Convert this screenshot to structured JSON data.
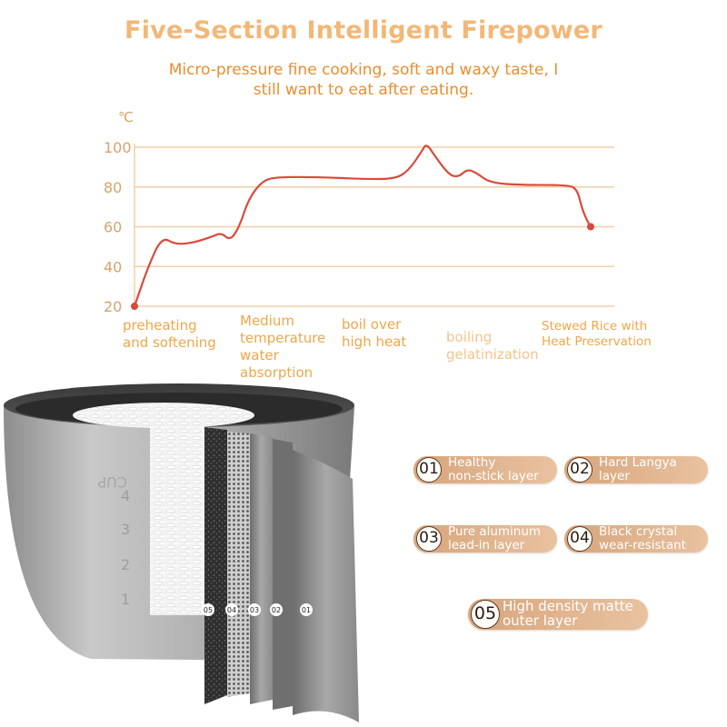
{
  "header": {
    "title": "Five-Section Intelligent Firepower",
    "subtitle": "Micro-pressure fine cooking, soft and waxy taste, I still want to eat after eating."
  },
  "chart_data": {
    "type": "line",
    "unit": "℃",
    "ylim": [
      20,
      100
    ],
    "yticks": [
      "100",
      "80",
      "60",
      "40",
      "20"
    ],
    "grid": true,
    "series": [
      {
        "color": "#d94a3a",
        "points": [
          [
            0,
            20
          ],
          [
            3,
            40
          ],
          [
            6,
            55
          ],
          [
            9,
            51
          ],
          [
            13,
            52
          ],
          [
            17,
            55
          ],
          [
            19,
            57
          ],
          [
            21,
            53
          ],
          [
            23,
            60
          ],
          [
            25,
            74
          ],
          [
            28,
            83
          ],
          [
            31,
            85
          ],
          [
            40,
            85
          ],
          [
            50,
            84
          ],
          [
            57,
            84
          ],
          [
            60,
            88
          ],
          [
            63,
            98
          ],
          [
            64,
            102
          ],
          [
            66,
            95
          ],
          [
            69,
            86
          ],
          [
            71,
            85
          ],
          [
            73,
            89
          ],
          [
            75,
            87
          ],
          [
            78,
            82
          ],
          [
            85,
            81
          ],
          [
            95,
            81
          ],
          [
            97,
            79
          ],
          [
            98,
            70
          ],
          [
            99,
            64
          ],
          [
            100,
            60
          ]
        ]
      }
    ],
    "stages": [
      "preheating and softening",
      "Medium temperature water absorption",
      "boil over high heat",
      "boiling gelatinization",
      "Stewed Rice with Heat Preservation"
    ]
  },
  "stage_text": {
    "s1_line1": "preheating",
    "s1_line2": "and softening",
    "s2_line1": "Medium",
    "s2_line2": "temperature",
    "s2_line3": "water",
    "s2_line4": "absorption",
    "s3_line1": "boil over",
    "s3_line2": "high heat",
    "s4_line1": "boiling",
    "s4_line2": "gelatinization",
    "s5_line1": "Stewed Rice with",
    "s5_line2": "Heat Preservation"
  },
  "pot": {
    "scale_labels": [
      "CUP",
      "4",
      "3",
      "2",
      "1"
    ],
    "layer_tags": [
      "05",
      "04",
      "03",
      "02",
      "01"
    ]
  },
  "layers": [
    {
      "num": "01",
      "line1": "Healthy",
      "line2": "non-stick layer"
    },
    {
      "num": "02",
      "line1": "Hard Langya",
      "line2": "layer"
    },
    {
      "num": "03",
      "line1": "Pure aluminum",
      "line2": "lead-in layer"
    },
    {
      "num": "04",
      "line1": "Black crystal",
      "line2": "wear-resistant"
    },
    {
      "num": "05",
      "line1": "High density matte",
      "line2": "outer layer"
    }
  ],
  "colors": {
    "title": "#f3b776",
    "subtitle": "#ea8d2f",
    "axis_text": "#d8a26a",
    "grid": "#f2cfa6",
    "curve": "#d94a3a",
    "badge": "#dcaa80"
  }
}
